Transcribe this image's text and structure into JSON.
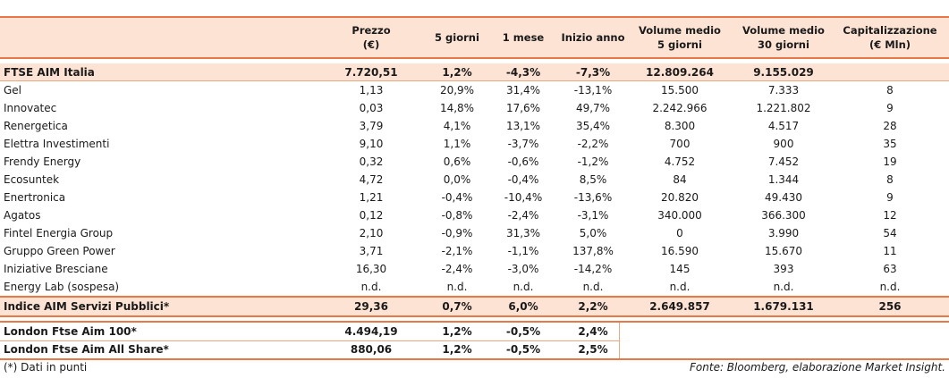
{
  "columns": {
    "price": [
      "Prezzo",
      "(€)"
    ],
    "d5": "5 giorni",
    "m1": "1 mese",
    "ytd": "Inizio anno",
    "vol5": [
      "Volume medio",
      "5 giorni"
    ],
    "vol30": [
      "Volume medio",
      "30 giorni"
    ],
    "cap": [
      "Capitalizzazione",
      "(€ Mln)"
    ]
  },
  "index_row": {
    "name": "FTSE AIM Italia",
    "price": "7.720,51",
    "d5": "1,2%",
    "m1": "-4,3%",
    "ytd": "-7,3%",
    "vol5": "12.809.264",
    "vol30": "9.155.029",
    "cap": ""
  },
  "rows": [
    {
      "name": "Gel",
      "price": "1,13",
      "d5": "20,9%",
      "m1": "31,4%",
      "ytd": "-13,1%",
      "vol5": "15.500",
      "vol30": "7.333",
      "cap": "8"
    },
    {
      "name": "Innovatec",
      "price": "0,03",
      "d5": "14,8%",
      "m1": "17,6%",
      "ytd": "49,7%",
      "vol5": "2.242.966",
      "vol30": "1.221.802",
      "cap": "9"
    },
    {
      "name": "Renergetica",
      "price": "3,79",
      "d5": "4,1%",
      "m1": "13,1%",
      "ytd": "35,4%",
      "vol5": "8.300",
      "vol30": "4.517",
      "cap": "28"
    },
    {
      "name": "Elettra Investimenti",
      "price": "9,10",
      "d5": "1,1%",
      "m1": "-3,7%",
      "ytd": "-2,2%",
      "vol5": "700",
      "vol30": "900",
      "cap": "35"
    },
    {
      "name": "Frendy Energy",
      "price": "0,32",
      "d5": "0,6%",
      "m1": "-0,6%",
      "ytd": "-1,2%",
      "vol5": "4.752",
      "vol30": "7.452",
      "cap": "19"
    },
    {
      "name": "Ecosuntek",
      "price": "4,72",
      "d5": "0,0%",
      "m1": "-0,4%",
      "ytd": "8,5%",
      "vol5": "84",
      "vol30": "1.344",
      "cap": "8"
    },
    {
      "name": "Enertronica",
      "price": "1,21",
      "d5": "-0,4%",
      "m1": "-10,4%",
      "ytd": "-13,6%",
      "vol5": "20.820",
      "vol30": "49.430",
      "cap": "9"
    },
    {
      "name": "Agatos",
      "price": "0,12",
      "d5": "-0,8%",
      "m1": "-2,4%",
      "ytd": "-3,1%",
      "vol5": "340.000",
      "vol30": "366.300",
      "cap": "12"
    },
    {
      "name": "Fintel Energia Group",
      "price": "2,10",
      "d5": "-0,9%",
      "m1": "31,3%",
      "ytd": "5,0%",
      "vol5": "0",
      "vol30": "3.990",
      "cap": "54"
    },
    {
      "name": "Gruppo Green Power",
      "price": "3,71",
      "d5": "-2,1%",
      "m1": "-1,1%",
      "ytd": "137,8%",
      "vol5": "16.590",
      "vol30": "15.670",
      "cap": "11"
    },
    {
      "name": "Iniziative Bresciane",
      "price": "16,30",
      "d5": "-2,4%",
      "m1": "-3,0%",
      "ytd": "-14,2%",
      "vol5": "145",
      "vol30": "393",
      "cap": "63"
    },
    {
      "name": "Energy Lab (sospesa)",
      "price": "n.d.",
      "d5": "n.d.",
      "m1": "n.d.",
      "ytd": "n.d.",
      "vol5": "n.d.",
      "vol30": "n.d.",
      "cap": "n.d."
    }
  ],
  "sector_row": {
    "name": "Indice AIM Servizi Pubblici*",
    "price": "29,36",
    "d5": "0,7%",
    "m1": "6,0%",
    "ytd": "2,2%",
    "vol5": "2.649.857",
    "vol30": "1.679.131",
    "cap": "256"
  },
  "london_rows": [
    {
      "name": "London Ftse Aim 100*",
      "price": "4.494,19",
      "d5": "1,2%",
      "m1": "-0,5%",
      "ytd": "2,4%"
    },
    {
      "name": "London Ftse Aim All Share*",
      "price": "880,06",
      "d5": "1,2%",
      "m1": "-0,5%",
      "ytd": "2,5%"
    }
  ],
  "footnote": "(*) Dati in punti",
  "source": "Fonte: Bloomberg, elaborazione Market Insight."
}
